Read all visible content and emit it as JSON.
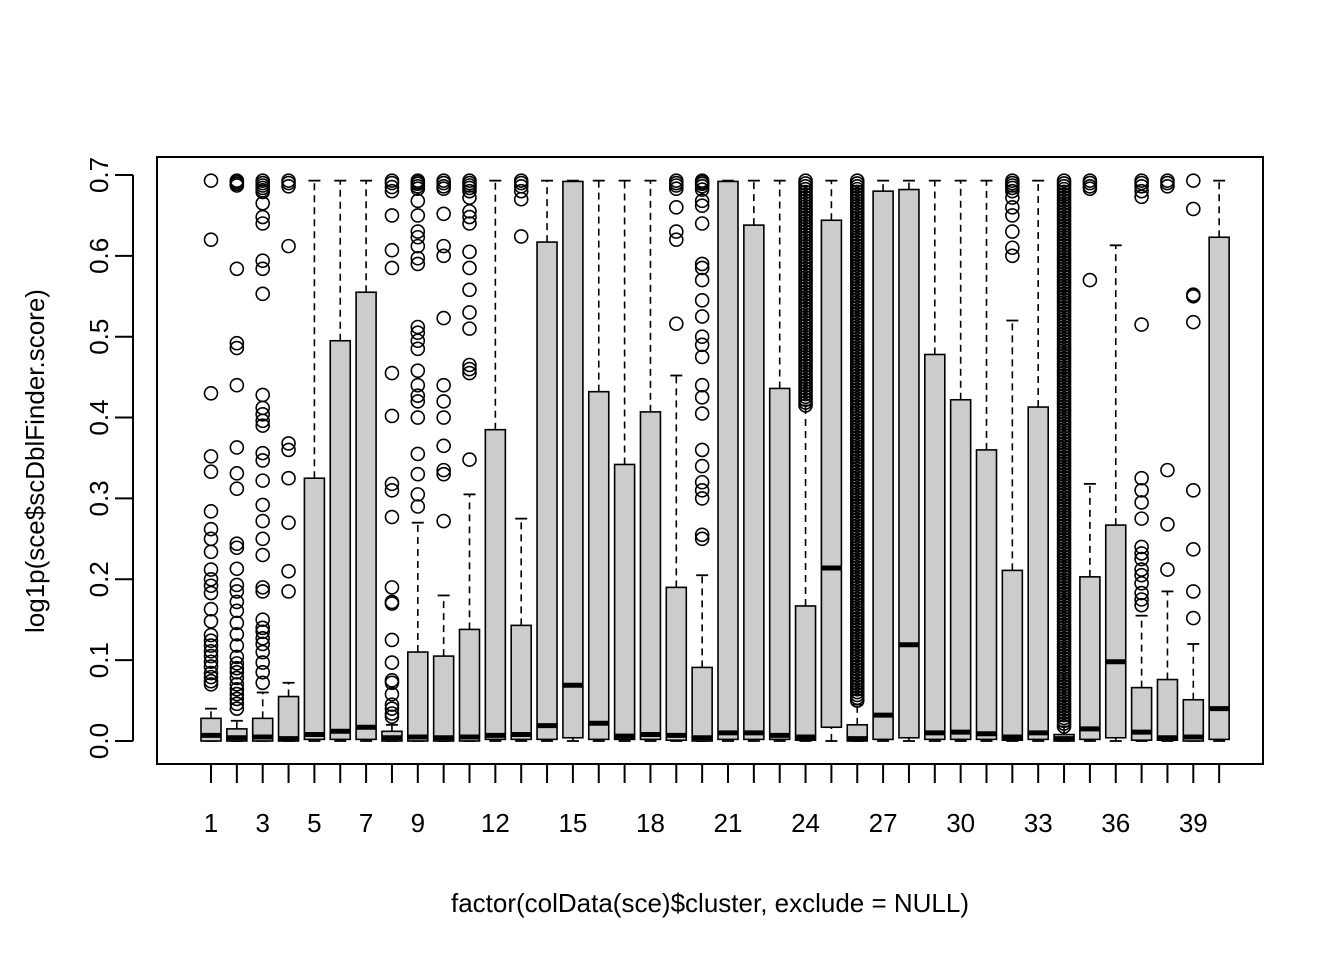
{
  "chart_data": {
    "type": "boxplot",
    "title": "",
    "xlabel": "factor(colData(sce)$cluster, exclude = NULL)",
    "ylabel": "log1p(sce$scDblFinder.score)",
    "ylim": [
      0,
      0.7
    ],
    "yticks": [
      "0.0",
      "0.1",
      "0.2",
      "0.3",
      "0.4",
      "0.5",
      "0.6",
      "0.7"
    ],
    "xtick_labels": [
      {
        "index": 1,
        "label": "1"
      },
      {
        "index": 3,
        "label": "3"
      },
      {
        "index": 5,
        "label": "5"
      },
      {
        "index": 7,
        "label": "7"
      },
      {
        "index": 9,
        "label": "9"
      },
      {
        "index": 12,
        "label": "12"
      },
      {
        "index": 15,
        "label": "15"
      },
      {
        "index": 18,
        "label": "18"
      },
      {
        "index": 21,
        "label": "21"
      },
      {
        "index": 24,
        "label": "24"
      },
      {
        "index": 27,
        "label": "27"
      },
      {
        "index": 30,
        "label": "30"
      },
      {
        "index": 33,
        "label": "33"
      },
      {
        "index": 36,
        "label": "36"
      },
      {
        "index": 39,
        "label": "39"
      }
    ],
    "box_fill": "#cccccc",
    "boxes": [
      {
        "cat": "1",
        "q1": 0.0,
        "med": 0.007,
        "q3": 0.028,
        "wlo": 0,
        "whi": 0.04,
        "out": [
          0.693,
          0.62,
          0.43,
          0.352,
          0.333,
          0.284,
          0.262,
          0.25,
          0.234,
          0.212,
          0.2,
          0.192,
          0.183,
          0.163,
          0.148,
          0.131,
          0.124,
          0.118,
          0.111,
          0.105,
          0.098,
          0.092,
          0.084,
          0.079,
          0.074,
          0.07
        ]
      },
      {
        "cat": "2",
        "q1": 0.0,
        "med": 0.004,
        "q3": 0.015,
        "wlo": 0,
        "whi": 0.025,
        "out": [
          0.693,
          0.691,
          0.689,
          0.687,
          0.584,
          0.492,
          0.486,
          0.44,
          0.363,
          0.331,
          0.312,
          0.244,
          0.239,
          0.213,
          0.193,
          0.185,
          0.172,
          0.161,
          0.146,
          0.132,
          0.118,
          0.104,
          0.096,
          0.09,
          0.085,
          0.078,
          0.07,
          0.064,
          0.058,
          0.052,
          0.046,
          0.04
        ]
      },
      {
        "cat": "3",
        "q1": 0.0,
        "med": 0.005,
        "q3": 0.028,
        "wlo": 0,
        "whi": 0.06,
        "out": [
          0.693,
          0.69,
          0.687,
          0.684,
          0.681,
          0.679,
          0.665,
          0.648,
          0.64,
          0.594,
          0.584,
          0.553,
          0.428,
          0.412,
          0.404,
          0.396,
          0.39,
          0.356,
          0.347,
          0.322,
          0.292,
          0.272,
          0.25,
          0.23,
          0.19,
          0.185,
          0.15,
          0.14,
          0.135,
          0.127,
          0.12,
          0.11,
          0.097,
          0.085,
          0.072
        ]
      },
      {
        "cat": "4",
        "q1": 0.0,
        "med": 0.003,
        "q3": 0.055,
        "wlo": 0,
        "whi": 0.072,
        "out": [
          0.693,
          0.69,
          0.686,
          0.612,
          0.368,
          0.36,
          0.325,
          0.27,
          0.21,
          0.185
        ]
      },
      {
        "cat": "5",
        "q1": 0.002,
        "med": 0.008,
        "q3": 0.325,
        "wlo": 0,
        "whi": 0.693,
        "out": []
      },
      {
        "cat": "6",
        "q1": 0.002,
        "med": 0.012,
        "q3": 0.495,
        "wlo": 0,
        "whi": 0.693,
        "out": []
      },
      {
        "cat": "7",
        "q1": 0.002,
        "med": 0.017,
        "q3": 0.555,
        "wlo": 0,
        "whi": 0.693,
        "out": []
      },
      {
        "cat": "8",
        "q1": 0.0,
        "med": 0.004,
        "q3": 0.012,
        "wlo": 0,
        "whi": 0.02,
        "out": [
          0.693,
          0.69,
          0.685,
          0.68,
          0.65,
          0.607,
          0.585,
          0.455,
          0.402,
          0.318,
          0.31,
          0.277,
          0.19,
          0.172,
          0.17,
          0.125,
          0.097,
          0.075,
          0.072,
          0.058,
          0.045,
          0.04,
          0.034,
          0.03
        ]
      },
      {
        "cat": "9",
        "q1": 0.0,
        "med": 0.005,
        "q3": 0.11,
        "wlo": 0,
        "whi": 0.27,
        "out": [
          0.693,
          0.691,
          0.689,
          0.686,
          0.683,
          0.668,
          0.65,
          0.63,
          0.623,
          0.612,
          0.597,
          0.59,
          0.512,
          0.505,
          0.495,
          0.485,
          0.458,
          0.44,
          0.427,
          0.42,
          0.4,
          0.355,
          0.33,
          0.305,
          0.29
        ]
      },
      {
        "cat": "10",
        "q1": 0.0,
        "med": 0.004,
        "q3": 0.105,
        "wlo": 0,
        "whi": 0.18,
        "out": [
          0.693,
          0.69,
          0.686,
          0.683,
          0.652,
          0.612,
          0.6,
          0.523,
          0.44,
          0.42,
          0.4,
          0.365,
          0.335,
          0.33,
          0.272
        ]
      },
      {
        "cat": "11",
        "q1": 0.0,
        "med": 0.005,
        "q3": 0.138,
        "wlo": 0,
        "whi": 0.305,
        "out": [
          0.693,
          0.69,
          0.687,
          0.684,
          0.68,
          0.672,
          0.655,
          0.648,
          0.64,
          0.605,
          0.585,
          0.558,
          0.53,
          0.51,
          0.465,
          0.46,
          0.455,
          0.348
        ]
      },
      {
        "cat": "12",
        "q1": 0.002,
        "med": 0.007,
        "q3": 0.385,
        "wlo": 0,
        "whi": 0.693,
        "out": []
      },
      {
        "cat": "13",
        "q1": 0.002,
        "med": 0.008,
        "q3": 0.143,
        "wlo": 0,
        "whi": 0.275,
        "out": [
          0.693,
          0.69,
          0.686,
          0.68,
          0.67,
          0.624
        ]
      },
      {
        "cat": "14",
        "q1": 0.002,
        "med": 0.019,
        "q3": 0.617,
        "wlo": 0,
        "whi": 0.693,
        "out": []
      },
      {
        "cat": "15",
        "q1": 0.004,
        "med": 0.069,
        "q3": 0.692,
        "wlo": 0,
        "whi": 0.693,
        "out": []
      },
      {
        "cat": "16",
        "q1": 0.002,
        "med": 0.022,
        "q3": 0.432,
        "wlo": 0,
        "whi": 0.693,
        "out": []
      },
      {
        "cat": "17",
        "q1": 0.002,
        "med": 0.006,
        "q3": 0.342,
        "wlo": 0,
        "whi": 0.693,
        "out": []
      },
      {
        "cat": "18",
        "q1": 0.002,
        "med": 0.008,
        "q3": 0.407,
        "wlo": 0,
        "whi": 0.693,
        "out": []
      },
      {
        "cat": "19",
        "q1": 0.001,
        "med": 0.007,
        "q3": 0.19,
        "wlo": 0,
        "whi": 0.452,
        "out": [
          0.693,
          0.69,
          0.687,
          0.683,
          0.66,
          0.63,
          0.62,
          0.516
        ]
      },
      {
        "cat": "20",
        "q1": 0.0,
        "med": 0.004,
        "q3": 0.091,
        "wlo": 0,
        "whi": 0.205,
        "out": [
          0.693,
          0.691,
          0.689,
          0.686,
          0.682,
          0.668,
          0.662,
          0.64,
          0.59,
          0.585,
          0.57,
          0.545,
          0.525,
          0.5,
          0.49,
          0.475,
          0.44,
          0.425,
          0.405,
          0.36,
          0.34,
          0.32,
          0.31,
          0.3,
          0.255,
          0.25
        ]
      },
      {
        "cat": "21",
        "q1": 0.002,
        "med": 0.01,
        "q3": 0.692,
        "wlo": 0,
        "whi": 0.693,
        "out": []
      },
      {
        "cat": "22",
        "q1": 0.002,
        "med": 0.01,
        "q3": 0.638,
        "wlo": 0,
        "whi": 0.693,
        "out": []
      },
      {
        "cat": "23",
        "q1": 0.002,
        "med": 0.007,
        "q3": 0.436,
        "wlo": 0,
        "whi": 0.693,
        "out": []
      },
      {
        "cat": "24",
        "q1": 0.001,
        "med": 0.005,
        "q3": 0.167,
        "wlo": 0,
        "whi": 0.415,
        "out_range": [
          0.415,
          0.693
        ]
      },
      {
        "cat": "25",
        "q1": 0.017,
        "med": 0.214,
        "q3": 0.644,
        "wlo": 0,
        "whi": 0.693,
        "out": []
      },
      {
        "cat": "26",
        "q1": 0.0,
        "med": 0.003,
        "q3": 0.02,
        "wlo": 0,
        "whi": 0.045,
        "out_range": [
          0.05,
          0.693
        ]
      },
      {
        "cat": "27",
        "q1": 0.002,
        "med": 0.032,
        "q3": 0.68,
        "wlo": 0,
        "whi": 0.693,
        "out": []
      },
      {
        "cat": "28",
        "q1": 0.004,
        "med": 0.119,
        "q3": 0.682,
        "wlo": 0,
        "whi": 0.693,
        "out": []
      },
      {
        "cat": "29",
        "q1": 0.002,
        "med": 0.01,
        "q3": 0.478,
        "wlo": 0,
        "whi": 0.693,
        "out": []
      },
      {
        "cat": "30",
        "q1": 0.002,
        "med": 0.011,
        "q3": 0.422,
        "wlo": 0,
        "whi": 0.693,
        "out": []
      },
      {
        "cat": "31",
        "q1": 0.002,
        "med": 0.009,
        "q3": 0.36,
        "wlo": 0,
        "whi": 0.693,
        "out": []
      },
      {
        "cat": "32",
        "q1": 0.001,
        "med": 0.005,
        "q3": 0.211,
        "wlo": 0,
        "whi": 0.52,
        "out": [
          0.693,
          0.69,
          0.687,
          0.684,
          0.68,
          0.672,
          0.66,
          0.65,
          0.63,
          0.61,
          0.6
        ]
      },
      {
        "cat": "33",
        "q1": 0.002,
        "med": 0.01,
        "q3": 0.413,
        "wlo": 0,
        "whi": 0.693,
        "out": []
      },
      {
        "cat": "34",
        "q1": 0.0,
        "med": 0.003,
        "q3": 0.008,
        "wlo": 0,
        "whi": 0.018,
        "out_range": [
          0.018,
          0.693
        ]
      },
      {
        "cat": "35",
        "q1": 0.002,
        "med": 0.015,
        "q3": 0.203,
        "wlo": 0,
        "whi": 0.318,
        "out": [
          0.693,
          0.69,
          0.686,
          0.683,
          0.57
        ]
      },
      {
        "cat": "36",
        "q1": 0.004,
        "med": 0.098,
        "q3": 0.267,
        "wlo": 0,
        "whi": 0.613,
        "out": []
      },
      {
        "cat": "37",
        "q1": 0.001,
        "med": 0.011,
        "q3": 0.066,
        "wlo": 0,
        "whi": 0.155,
        "out": [
          0.693,
          0.69,
          0.686,
          0.68,
          0.673,
          0.515,
          0.325,
          0.31,
          0.295,
          0.275,
          0.24,
          0.232,
          0.225,
          0.212,
          0.205,
          0.195,
          0.183,
          0.175,
          0.168
        ]
      },
      {
        "cat": "38",
        "q1": 0.001,
        "med": 0.004,
        "q3": 0.076,
        "wlo": 0,
        "whi": 0.185,
        "out": [
          0.693,
          0.69,
          0.686,
          0.335,
          0.268,
          0.212
        ]
      },
      {
        "cat": "39",
        "q1": 0.0,
        "med": 0.005,
        "q3": 0.051,
        "wlo": 0,
        "whi": 0.12,
        "out": [
          0.693,
          0.658,
          0.552,
          0.55,
          0.518,
          0.31,
          0.237,
          0.185,
          0.152
        ]
      },
      {
        "cat": "40",
        "q1": 0.002,
        "med": 0.04,
        "q3": 0.623,
        "wlo": 0,
        "whi": 0.693,
        "out": []
      }
    ]
  }
}
